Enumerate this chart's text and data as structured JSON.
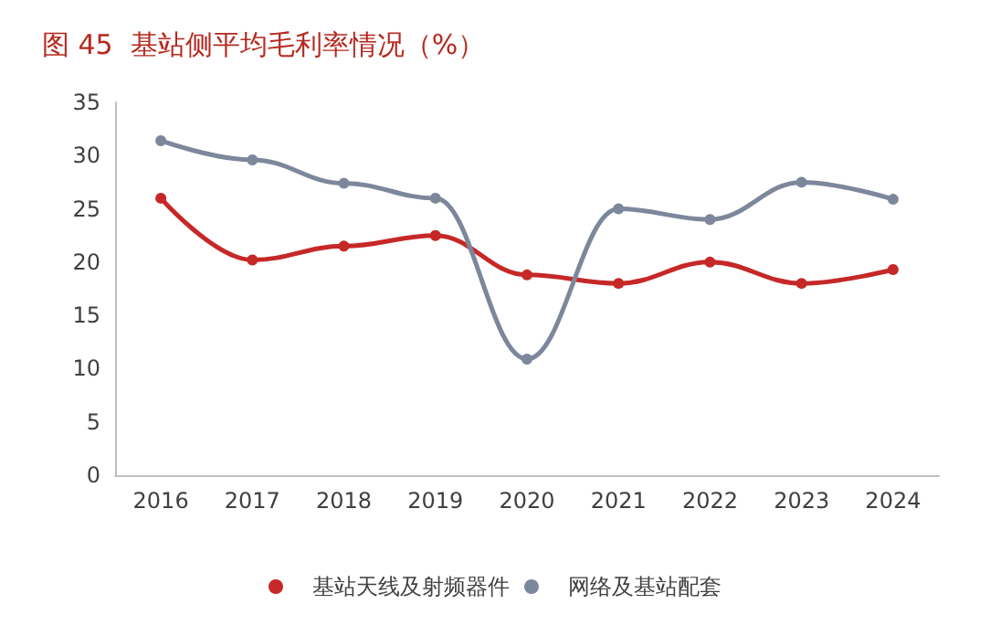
{
  "chart_data": {
    "type": "line",
    "title": "图 45  基站侧平均毛利率情况（%）",
    "categories": [
      "2016",
      "2017",
      "2018",
      "2019",
      "2020",
      "2021",
      "2022",
      "2023",
      "2024"
    ],
    "series": [
      {
        "name": "基站天线及射频器件",
        "color": "#c62828",
        "values": [
          26,
          20.2,
          21.5,
          22.5,
          18.8,
          18,
          20,
          18,
          19.3
        ]
      },
      {
        "name": "网络及基站配套",
        "color": "#7d879c",
        "values": [
          31.4,
          29.6,
          27.4,
          26,
          10.9,
          25,
          24,
          27.5,
          25.9
        ]
      }
    ],
    "ylim": [
      0,
      35
    ],
    "yticks": [
      0,
      5,
      10,
      15,
      20,
      25,
      30,
      35
    ],
    "grid": false,
    "legend": "bottom",
    "marker": "circle",
    "line_style": "solid"
  }
}
